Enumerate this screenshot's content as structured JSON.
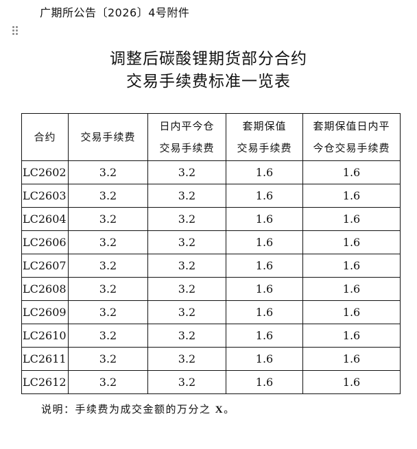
{
  "header": {
    "doc_ref": "广期所公告〔2026〕4号附件"
  },
  "title": {
    "line1": "调整后碳酸锂期货部分合约",
    "line2": "交易手续费标准一览表"
  },
  "table": {
    "columns": [
      {
        "line1": "合约",
        "line2": ""
      },
      {
        "line1": "交易手续费",
        "line2": ""
      },
      {
        "line1": "日内平今仓",
        "line2": "交易手续费"
      },
      {
        "line1": "套期保值",
        "line2": "交易手续费"
      },
      {
        "line1": "套期保值日内平",
        "line2": "今仓交易手续费"
      }
    ],
    "rows": [
      [
        "LC2602",
        "3.2",
        "3.2",
        "1.6",
        "1.6"
      ],
      [
        "LC2603",
        "3.2",
        "3.2",
        "1.6",
        "1.6"
      ],
      [
        "LC2604",
        "3.2",
        "3.2",
        "1.6",
        "1.6"
      ],
      [
        "LC2606",
        "3.2",
        "3.2",
        "1.6",
        "1.6"
      ],
      [
        "LC2607",
        "3.2",
        "3.2",
        "1.6",
        "1.6"
      ],
      [
        "LC2608",
        "3.2",
        "3.2",
        "1.6",
        "1.6"
      ],
      [
        "LC2609",
        "3.2",
        "3.2",
        "1.6",
        "1.6"
      ],
      [
        "LC2610",
        "3.2",
        "3.2",
        "1.6",
        "1.6"
      ],
      [
        "LC2611",
        "3.2",
        "3.2",
        "1.6",
        "1.6"
      ],
      [
        "LC2612",
        "3.2",
        "3.2",
        "1.6",
        "1.6"
      ]
    ]
  },
  "note": {
    "text": "说明：手续费为成交金额的万分之",
    "var": "X",
    "end": "。"
  }
}
